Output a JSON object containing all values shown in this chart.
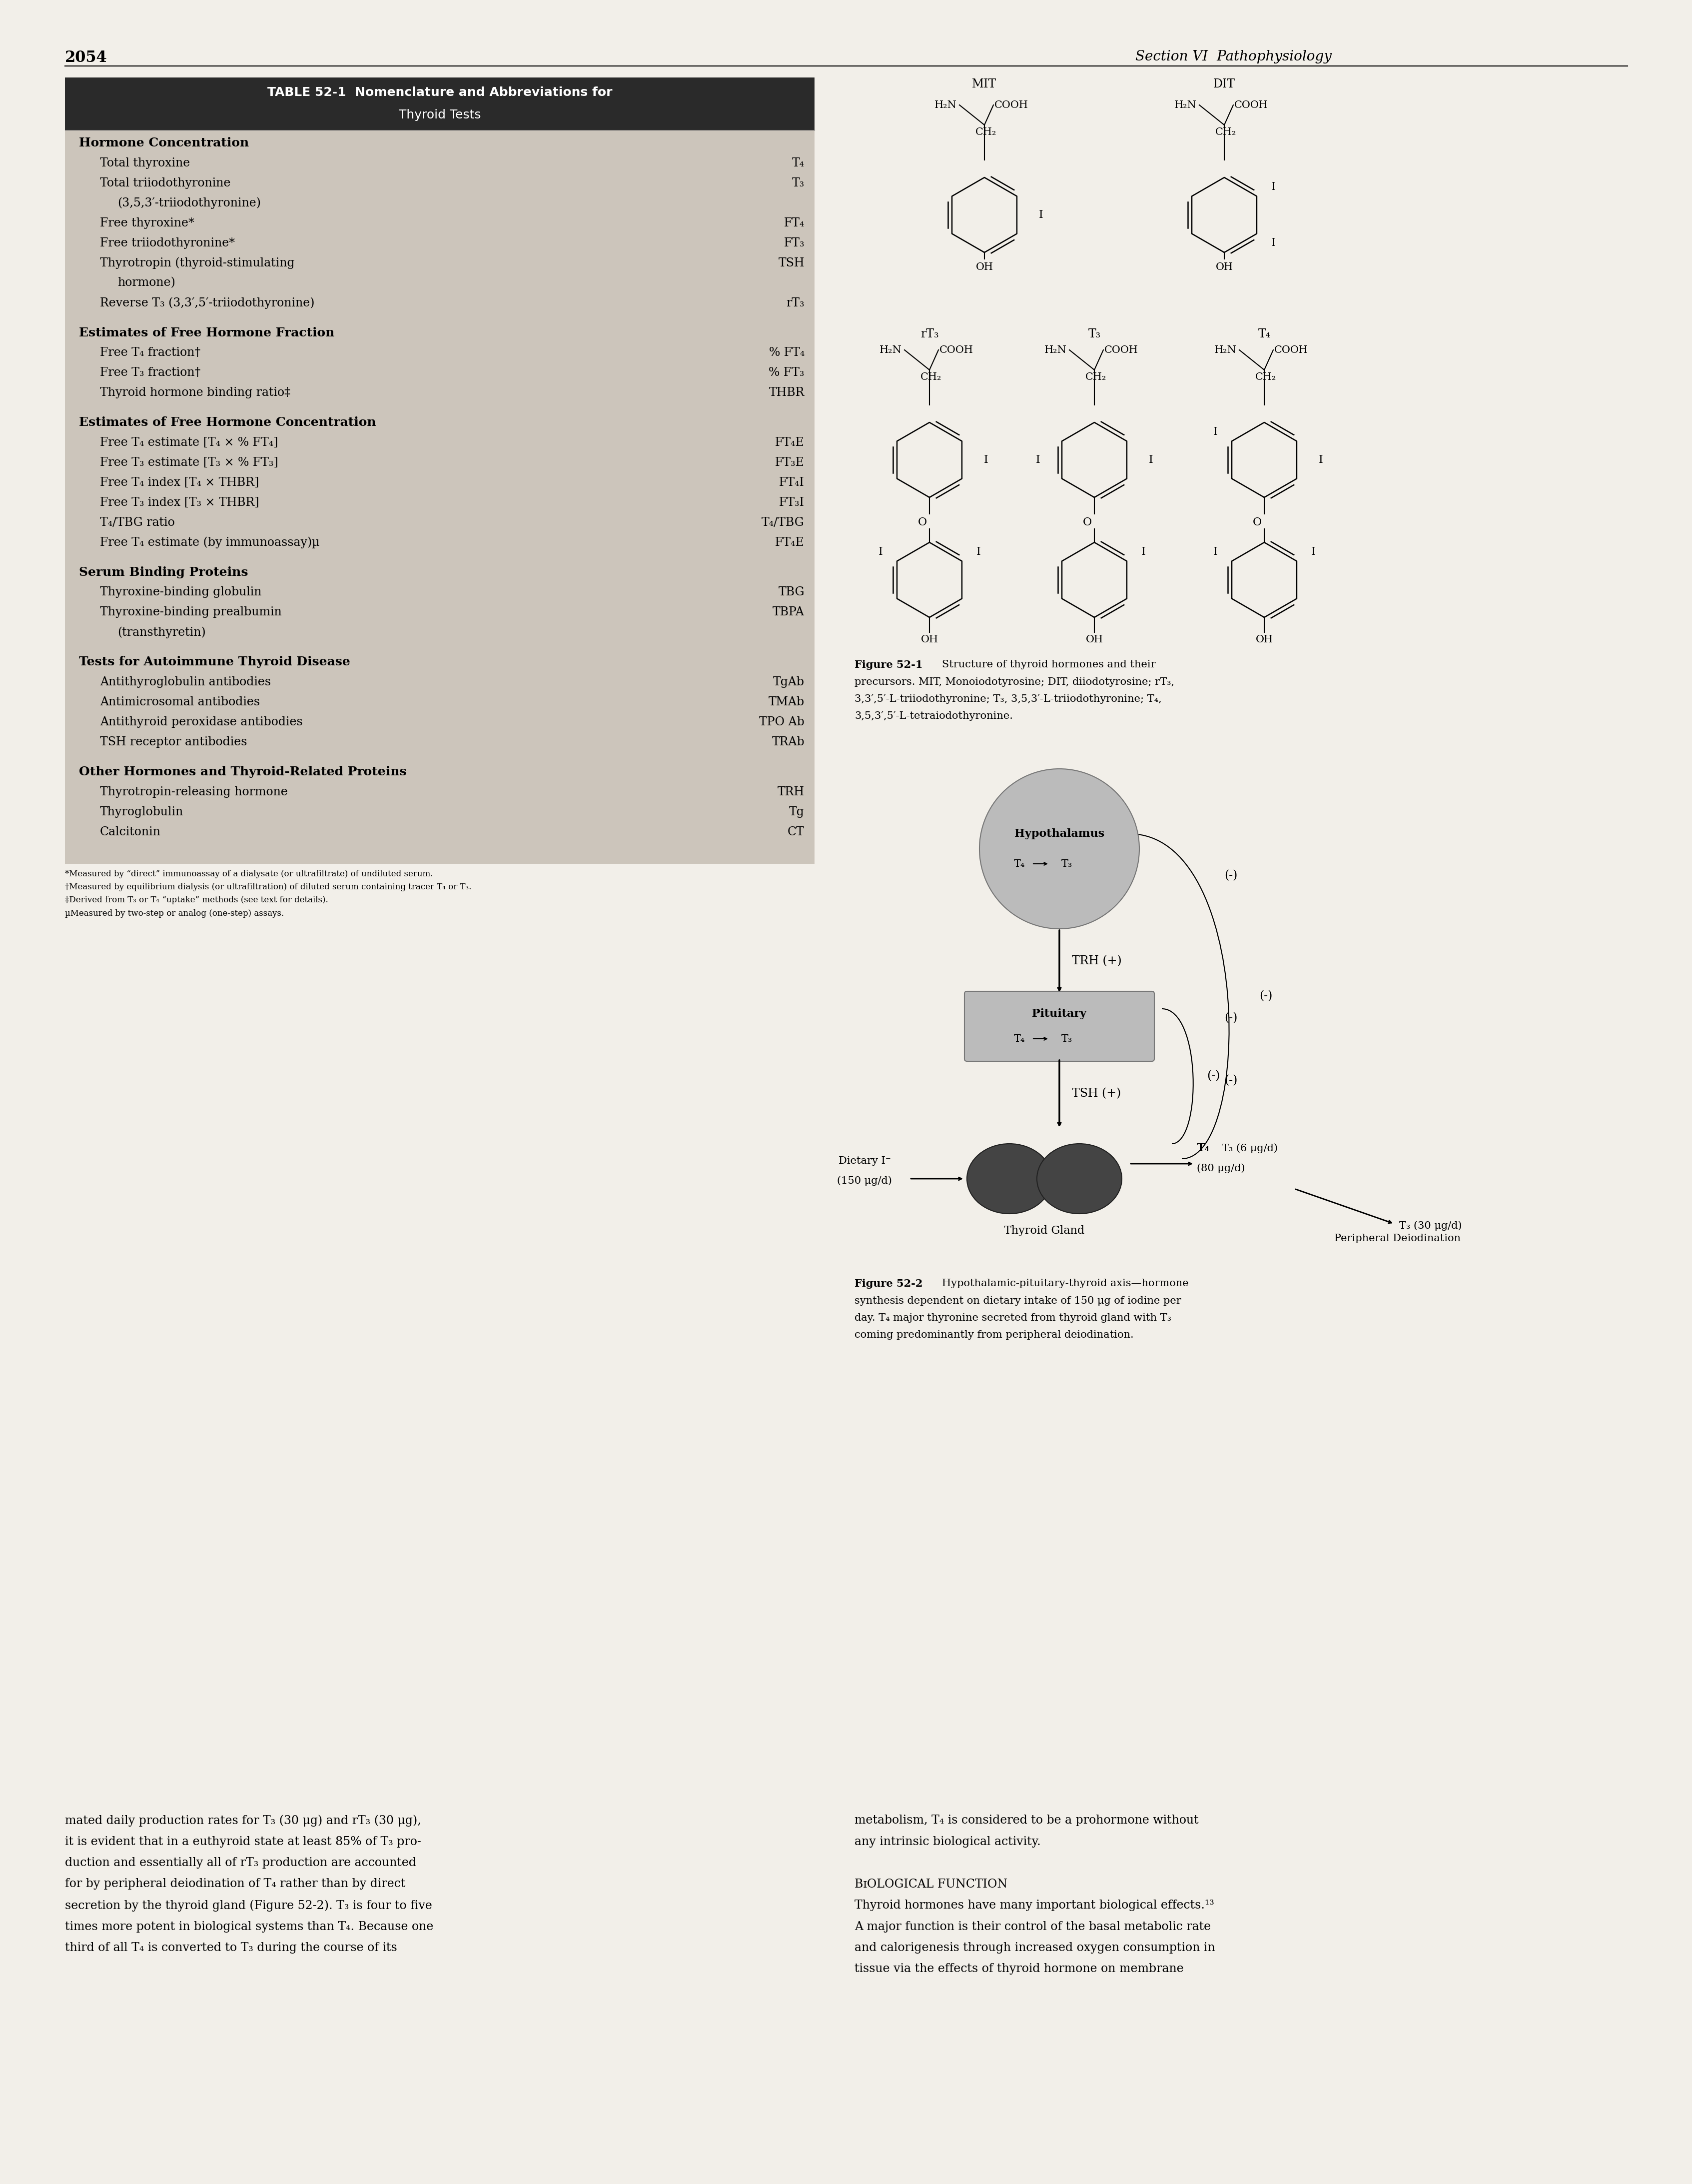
{
  "page_number": "2054",
  "section_header": "Section VI  Pathophysiology",
  "bg_color": "#f2efe9",
  "table": {
    "title_line1": "TABLE 52-1  Nomenclature and Abbreviations for",
    "title_line2": "Thyroid Tests",
    "sections": [
      {
        "heading": "Hormone Concentration",
        "rows": [
          [
            "Total thyroxine",
            "T₄"
          ],
          [
            "Total triiodothyronine",
            "T₃"
          ],
          [
            "    (3,5,3′-triiodothyronine)",
            ""
          ],
          [
            "Free thyroxine*",
            "FT₄"
          ],
          [
            "Free triiodothyronine*",
            "FT₃"
          ],
          [
            "Thyrotropin (thyroid-stimulating",
            "TSH"
          ],
          [
            "    hormone)",
            ""
          ],
          [
            "Reverse T₃ (3,3′,5′-triiodothyronine)",
            "rT₃"
          ]
        ]
      },
      {
        "heading": "Estimates of Free Hormone Fraction",
        "rows": [
          [
            "Free T₄ fraction†",
            "% FT₄"
          ],
          [
            "Free T₃ fraction†",
            "% FT₃"
          ],
          [
            "Thyroid hormone binding ratio‡",
            "THBR"
          ]
        ]
      },
      {
        "heading": "Estimates of Free Hormone Concentration",
        "rows": [
          [
            "Free T₄ estimate [T₄ × % FT₄]",
            "FT₄E"
          ],
          [
            "Free T₃ estimate [T₃ × % FT₃]",
            "FT₃E"
          ],
          [
            "Free T₄ index [T₄ × THBR]",
            "FT₄I"
          ],
          [
            "Free T₃ index [T₃ × THBR]",
            "FT₃I"
          ],
          [
            "T₄/TBG ratio",
            "T₄/TBG"
          ],
          [
            "Free T₄ estimate (by immunoassay)µ",
            "FT₄E"
          ]
        ]
      },
      {
        "heading": "Serum Binding Proteins",
        "rows": [
          [
            "Thyroxine-binding globulin",
            "TBG"
          ],
          [
            "Thyroxine-binding prealbumin",
            "TBPA"
          ],
          [
            "    (transthyretin)",
            ""
          ]
        ]
      },
      {
        "heading": "Tests for Autoimmune Thyroid Disease",
        "rows": [
          [
            "Antithyroglobulin antibodies",
            "TgAb"
          ],
          [
            "Antimicrosomal antibodies",
            "TMAb"
          ],
          [
            "Antithyroid peroxidase antibodies",
            "TPO Ab"
          ],
          [
            "TSH receptor antibodies",
            "TRAb"
          ]
        ]
      },
      {
        "heading": "Other Hormones and Thyroid-Related Proteins",
        "rows": [
          [
            "Thyrotropin-releasing hormone",
            "TRH"
          ],
          [
            "Thyroglobulin",
            "Tg"
          ],
          [
            "Calcitonin",
            "CT"
          ]
        ]
      }
    ],
    "footnotes": [
      "*Measured by “direct” immunoassay of a dialysate (or ultrafiltrate) of undiluted serum.",
      "†Measured by equilibrium dialysis (or ultrafiltration) of diluted serum containing tracer T₄ or T₃.",
      "‡Derived from T₃ or T₄ “uptake” methods (see text for details).",
      "µMeasured by two-step or analog (one-step) assays."
    ]
  },
  "bottom_left_text": [
    "mated daily production rates for T₃ (30 μg) and rT₃ (30 μg),",
    "it is evident that in a euthyroid state at least 85% of T₃ pro-",
    "duction and essentially all of rT₃ production are accounted",
    "for by peripheral deiodination of T₄ rather than by direct",
    "secretion by the thyroid gland (Figure 52-2). T₃ is four to five",
    "times more potent in biological systems than T₄. Because one",
    "third of all T₄ is converted to T₃ during the course of its"
  ],
  "bottom_right_text": [
    "metabolism, T₄ is considered to be a prohormone without",
    "any intrinsic biological activity.",
    "",
    "BɪOLOGICAL FUNCTION",
    "Thyroid hormones have many important biological effects.¹³",
    "A major function is their control of the basal metabolic rate",
    "and calorigenesis through increased oxygen consumption in",
    "tissue via the effects of thyroid hormone on membrane"
  ]
}
